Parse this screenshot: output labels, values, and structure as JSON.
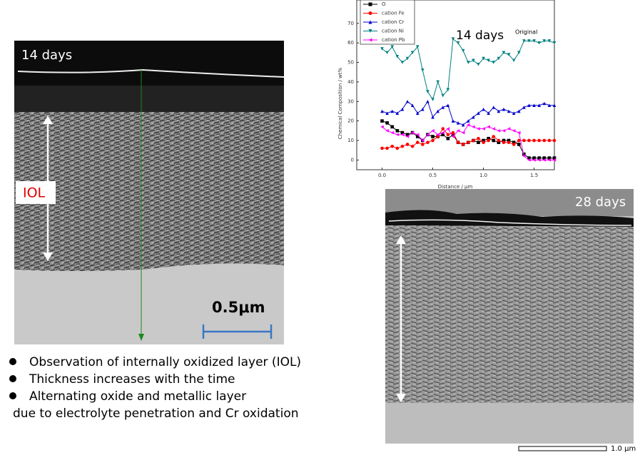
{
  "slide": {
    "left_image": {
      "label": "14 days",
      "layer_label": "IOL",
      "scale_label": "0.5μm"
    },
    "right_image": {
      "label": "28 days",
      "scale_label": "1.0 μm"
    },
    "bullets": [
      "Observation of internally oxidized layer (IOL)",
      "Thickness increases with the time",
      "Alternating oxide and metallic layer"
    ],
    "bullet_continuation": "due to electrolyte penetration and Cr oxidation"
  },
  "chart_data": {
    "type": "line",
    "annotations": [
      "14 days",
      "Original"
    ],
    "x_label": "Distance / μm",
    "y_label": "Chemical Composition / wt%",
    "x": [
      0,
      0.05,
      0.1,
      0.15,
      0.2,
      0.25,
      0.3,
      0.35,
      0.4,
      0.45,
      0.5,
      0.55,
      0.6,
      0.65,
      0.7,
      0.75,
      0.8,
      0.85,
      0.9,
      0.95,
      1.0,
      1.05,
      1.1,
      1.15,
      1.2,
      1.25,
      1.3,
      1.35,
      1.4,
      1.45,
      1.5,
      1.55,
      1.6,
      1.65,
      1.7
    ],
    "series": [
      {
        "name": "O",
        "color": "#000000",
        "marker": "square",
        "values": [
          20,
          19,
          17,
          15,
          14,
          13,
          14,
          12,
          10,
          13,
          12,
          12,
          13,
          11,
          13,
          9,
          8,
          9,
          10,
          9,
          10,
          11,
          10,
          9,
          10,
          10,
          9,
          8,
          3,
          1,
          1,
          1,
          1,
          1,
          1
        ]
      },
      {
        "name": "cation Fe",
        "color": "#ff0000",
        "marker": "circle",
        "values": [
          6,
          6,
          7,
          6,
          7,
          8,
          7,
          9,
          8,
          9,
          10,
          12,
          16,
          13,
          14,
          9,
          8,
          9,
          10,
          11,
          9,
          10,
          12,
          10,
          9,
          9,
          8,
          10,
          10,
          10,
          10,
          10,
          10,
          10,
          10
        ]
      },
      {
        "name": "cation Cr",
        "color": "#0000cc",
        "marker": "up",
        "values": [
          25,
          24,
          25,
          24,
          26,
          30,
          28,
          24,
          26,
          30,
          22,
          25,
          27,
          28,
          20,
          19,
          18,
          20,
          22,
          24,
          26,
          24,
          27,
          25,
          26,
          25,
          24,
          25,
          27,
          28,
          28,
          28,
          29,
          28,
          28
        ]
      },
      {
        "name": "cation Ni",
        "color": "#008080",
        "marker": "down",
        "values": [
          57,
          55,
          58,
          53,
          50,
          52,
          55,
          58,
          46,
          35,
          31,
          40,
          33,
          36,
          62,
          60,
          56,
          50,
          51,
          49,
          52,
          51,
          50,
          52,
          55,
          54,
          51,
          55,
          61,
          61,
          61,
          60,
          61,
          61,
          60
        ]
      },
      {
        "name": "cation Pb",
        "color": "#ff00ff",
        "marker": "left",
        "values": [
          17,
          15,
          14,
          13,
          13,
          12,
          14,
          13,
          10,
          13,
          15,
          13,
          14,
          16,
          12,
          15,
          14,
          18,
          17,
          16,
          16,
          17,
          16,
          15,
          15,
          16,
          15,
          14,
          2,
          0,
          0,
          0,
          0,
          0,
          0
        ]
      }
    ],
    "xlim": [
      -0.25,
      1.7
    ],
    "xticks": [
      {
        "value": 0,
        "label": "0.0"
      },
      {
        "value": 0.5,
        "label": "0.5"
      },
      {
        "value": 1,
        "label": "1.0"
      },
      {
        "value": 1.5,
        "label": "1.5"
      }
    ],
    "ylim": [
      -5,
      82
    ],
    "yticks": [
      0,
      10,
      20,
      30,
      40,
      50,
      60,
      70
    ]
  }
}
